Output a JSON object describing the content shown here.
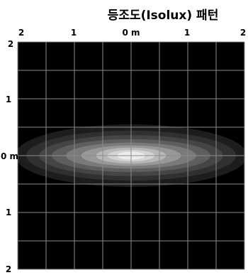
{
  "chart_data": {
    "type": "heatmap",
    "title": "등조도(Isolux) 패턴",
    "x_tick_labels": [
      "2",
      "1",
      "0 m",
      "1",
      "2"
    ],
    "y_tick_labels": [
      "2",
      "1",
      "0 m",
      "1",
      "2"
    ],
    "xlim": [
      -2,
      2
    ],
    "ylim": [
      -2,
      2
    ],
    "grid": true,
    "colors": {
      "background": "#000000",
      "grid": "#8c8c8c",
      "text": "#000000"
    },
    "contours": [
      {
        "level": 1,
        "rx": 2.05,
        "ry": 0.55,
        "color": "#1d1d1d"
      },
      {
        "level": 2,
        "rx": 1.85,
        "ry": 0.44,
        "color": "#303030"
      },
      {
        "level": 3,
        "rx": 1.62,
        "ry": 0.36,
        "color": "#454545"
      },
      {
        "level": 4,
        "rx": 1.4,
        "ry": 0.29,
        "color": "#5e5e5e"
      },
      {
        "level": 5,
        "rx": 1.15,
        "ry": 0.23,
        "color": "#7a7a7a"
      },
      {
        "level": 6,
        "rx": 0.88,
        "ry": 0.18,
        "color": "#989898"
      },
      {
        "level": 7,
        "rx": 0.62,
        "ry": 0.14,
        "color": "#b8b8b8"
      },
      {
        "level": 8,
        "rx": 0.42,
        "ry": 0.1,
        "color": "#d4d4d4"
      },
      {
        "level": 9,
        "rx": 0.25,
        "ry": 0.07,
        "color": "#ececec"
      }
    ]
  }
}
